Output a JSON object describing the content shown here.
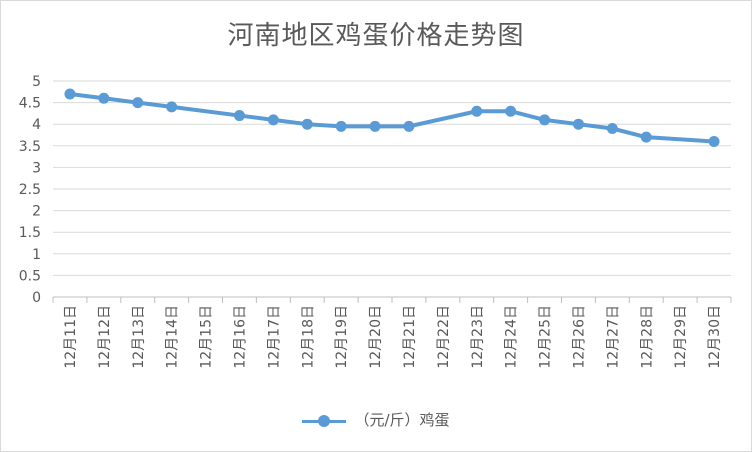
{
  "chart_data": {
    "type": "line",
    "title": "河南地区鸡蛋价格走势图",
    "categories": [
      "12月11日",
      "12月12日",
      "12月13日",
      "12月14日",
      "12月15日",
      "12月16日",
      "12月17日",
      "12月18日",
      "12月19日",
      "12月20日",
      "12月21日",
      "12月22日",
      "12月23日",
      "12月24日",
      "12月25日",
      "12月26日",
      "12月27日",
      "12月28日",
      "12月29日",
      "12月30日"
    ],
    "series": [
      {
        "name": "（元/斤）鸡蛋",
        "color": "#5b9bd5",
        "values": [
          4.7,
          4.6,
          4.5,
          4.4,
          null,
          4.2,
          4.1,
          4.0,
          3.95,
          3.95,
          3.95,
          null,
          4.3,
          4.3,
          4.1,
          4.0,
          3.9,
          3.7,
          null,
          3.6
        ]
      }
    ],
    "y_ticks": [
      "0",
      "0.5",
      "1",
      "1.5",
      "2",
      "2.5",
      "3",
      "3.5",
      "4",
      "4.5",
      "5"
    ],
    "ylim": [
      0,
      5
    ],
    "grid": true,
    "legend_position": "bottom"
  }
}
